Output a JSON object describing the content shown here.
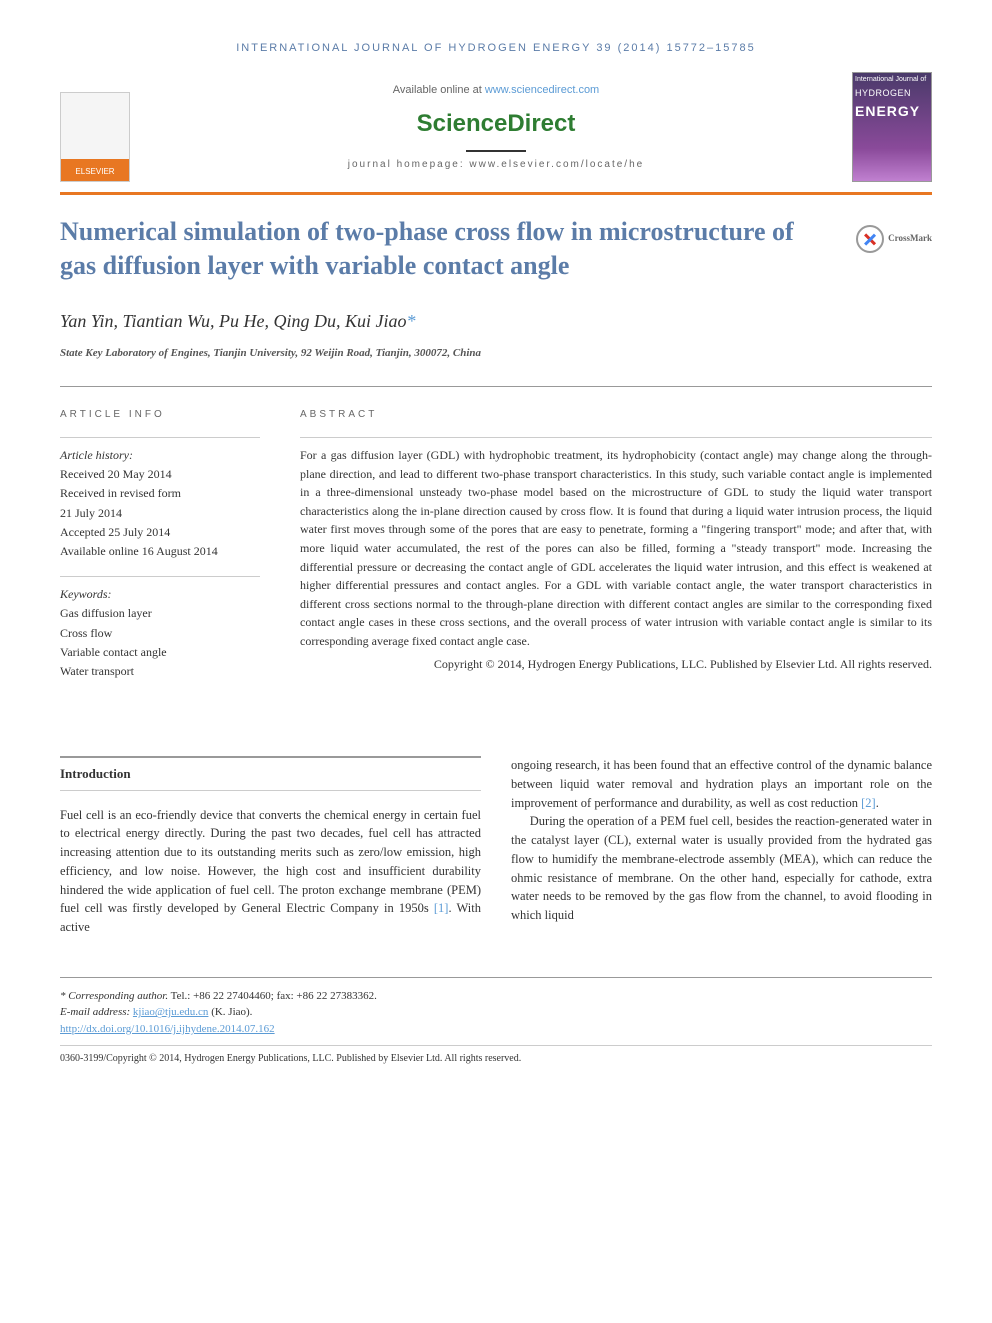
{
  "header": {
    "journal_citation": "INTERNATIONAL JOURNAL OF HYDROGEN ENERGY 39 (2014) 15772–15785",
    "available_prefix": "Available online at ",
    "available_url": "www.sciencedirect.com",
    "brand_logo": "ScienceDirect",
    "homepage_label": "journal homepage: www.elsevier.com/locate/he",
    "elsevier_label": "ELSEVIER",
    "cover_small": "International Journal of",
    "cover_word1": "HYDROGEN",
    "cover_word2": "ENERGY"
  },
  "article": {
    "title": "Numerical simulation of two-phase cross flow in microstructure of gas diffusion layer with variable contact angle",
    "crossmark": "CrossMark",
    "authors": "Yan Yin, Tiantian Wu, Pu He, Qing Du, Kui Jiao",
    "corresponding_marker": "*",
    "affiliation": "State Key Laboratory of Engines, Tianjin University, 92 Weijin Road, Tianjin, 300072, China"
  },
  "info": {
    "section_label": "ARTICLE INFO",
    "history_label": "Article history:",
    "received": "Received 20 May 2014",
    "revised_l1": "Received in revised form",
    "revised_l2": "21 July 2014",
    "accepted": "Accepted 25 July 2014",
    "online": "Available online 16 August 2014",
    "keywords_label": "Keywords:",
    "kw1": "Gas diffusion layer",
    "kw2": "Cross flow",
    "kw3": "Variable contact angle",
    "kw4": "Water transport"
  },
  "abstract": {
    "label": "ABSTRACT",
    "text": "For a gas diffusion layer (GDL) with hydrophobic treatment, its hydrophobicity (contact angle) may change along the through-plane direction, and lead to different two-phase transport characteristics. In this study, such variable contact angle is implemented in a three-dimensional unsteady two-phase model based on the microstructure of GDL to study the liquid water transport characteristics along the in-plane direction caused by cross flow. It is found that during a liquid water intrusion process, the liquid water first moves through some of the pores that are easy to penetrate, forming a \"fingering transport\" mode; and after that, with more liquid water accumulated, the rest of the pores can also be filled, forming a \"steady transport\" mode. Increasing the differential pressure or decreasing the contact angle of GDL accelerates the liquid water intrusion, and this effect is weakened at higher differential pressures and contact angles. For a GDL with variable contact angle, the water transport characteristics in different cross sections normal to the through-plane direction with different contact angles are similar to the corresponding fixed contact angle cases in these cross sections, and the overall process of water intrusion with variable contact angle is similar to its corresponding average fixed contact angle case.",
    "copyright": "Copyright © 2014, Hydrogen Energy Publications, LLC. Published by Elsevier Ltd. All rights reserved."
  },
  "body": {
    "intro_heading": "Introduction",
    "col1_p1a": "Fuel cell is an eco-friendly device that converts the chemical energy in certain fuel to electrical energy directly. During the past two decades, fuel cell has attracted increasing attention due to its outstanding merits such as zero/low emission, high efficiency, and low noise. However, the high cost and insufficient durability hindered the wide application of fuel cell. The proton exchange membrane (PEM) fuel cell was firstly developed by General Electric Company in 1950s ",
    "cite1": "[1]",
    "col1_p1b": ". With active",
    "col2_p1a": "ongoing research, it has been found that an effective control of the dynamic balance between liquid water removal and hydration plays an important role on the improvement of performance and durability, as well as cost reduction ",
    "cite2": "[2]",
    "col2_p1b": ".",
    "col2_p2": "During the operation of a PEM fuel cell, besides the reaction-generated water in the catalyst layer (CL), external water is usually provided from the hydrated gas flow to humidify the membrane-electrode assembly (MEA), which can reduce the ohmic resistance of membrane. On the other hand, especially for cathode, extra water needs to be removed by the gas flow from the channel, to avoid flooding in which liquid"
  },
  "footer": {
    "corr_label": "* Corresponding author.",
    "corr_phone": " Tel.: +86 22 27404460; fax: +86 22 27383362.",
    "email_label": "E-mail address: ",
    "email": "kjiao@tju.edu.cn",
    "email_suffix": " (K. Jiao).",
    "doi": "http://dx.doi.org/10.1016/j.ijhydene.2014.07.162",
    "issn_line": "0360-3199/Copyright © 2014, Hydrogen Energy Publications, LLC. Published by Elsevier Ltd. All rights reserved."
  },
  "colors": {
    "accent_orange": "#e87722",
    "heading_blue": "#5b7ca8",
    "link_blue": "#5b9bd5",
    "brand_green": "#2e7d32"
  }
}
